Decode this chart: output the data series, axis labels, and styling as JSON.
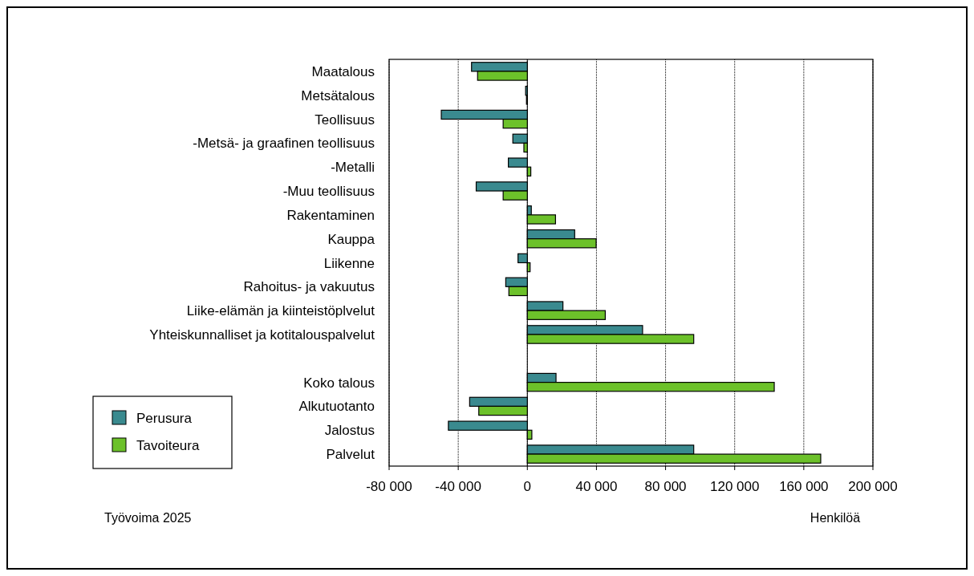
{
  "chart_data": {
    "type": "bar",
    "orientation": "horizontal",
    "xlabel": "Henkilöä",
    "annotations": [
      "Työvoima 2025"
    ],
    "categories": [
      "Maatalous",
      "Metsätalous",
      "Teollisuus",
      "-Metsä- ja graafinen teollisuus ",
      "-Metalli",
      "-Muu teollisuus",
      "Rakentaminen",
      "Kauppa",
      "Liikenne",
      "Rahoitus- ja vakuutus",
      "Liike-elämän ja kiinteistöplvelut",
      "Yhteiskunnalliset ja kotitalouspalvelut",
      null,
      "Koko talous",
      "Alkutuotanto",
      "Jalostus",
      "Palvelut"
    ],
    "series": [
      {
        "name": "Perusura",
        "color": "#3a8a8f",
        "values": [
          -32300,
          -1000,
          -49800,
          -8400,
          -11000,
          -29600,
          2300,
          27400,
          -5400,
          -12500,
          20600,
          66700,
          null,
          16600,
          -33400,
          -45700,
          96300
        ]
      },
      {
        "name": "Tavoiteura",
        "color": "#6cc12a",
        "values": [
          -28800,
          -500,
          -14000,
          -2000,
          2000,
          -14000,
          16300,
          39800,
          1600,
          -10700,
          45100,
          96300,
          null,
          142900,
          -28100,
          2600,
          169800
        ]
      }
    ],
    "xlim": [
      -80000,
      200000
    ],
    "xticks": [
      {
        "value": -80000,
        "label": "-80 000"
      },
      {
        "value": -40000,
        "label": "-40 000"
      },
      0,
      {
        "value": 40000,
        "label": "40 000"
      },
      {
        "value": 80000,
        "label": "80 000"
      },
      {
        "value": 120000,
        "label": "120 000"
      },
      {
        "value": 160000,
        "label": "160 000"
      },
      {
        "value": 200000,
        "label": "200 000"
      }
    ],
    "grid": "x",
    "legend": "bottom left"
  }
}
